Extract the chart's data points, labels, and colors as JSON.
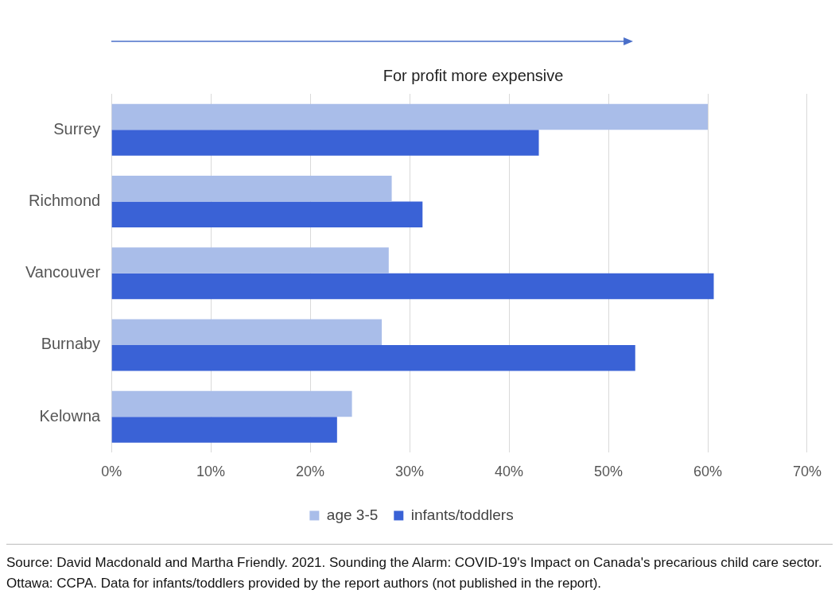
{
  "chart_data": {
    "type": "bar",
    "orientation": "horizontal",
    "categories": [
      "Surrey",
      "Richmond",
      "Vancouver",
      "Burnaby",
      "Kelowna"
    ],
    "series": [
      {
        "name": "age 3-5",
        "color": "#a9bde9",
        "values": [
          60,
          28.2,
          27.9,
          27.2,
          24.2
        ]
      },
      {
        "name": "infants/toddlers",
        "color": "#3a62d6",
        "values": [
          43,
          31.3,
          60.6,
          52.7,
          22.7
        ]
      }
    ],
    "xlim": [
      0,
      70
    ],
    "xticks": [
      {
        "value": 0,
        "label": "0%"
      },
      {
        "value": 10,
        "label": "10%"
      },
      {
        "value": 20,
        "label": "20%"
      },
      {
        "value": 30,
        "label": "30%"
      },
      {
        "value": 40,
        "label": "40%"
      },
      {
        "value": 50,
        "label": "50%"
      },
      {
        "value": 60,
        "label": "60%"
      },
      {
        "value": 70,
        "label": "70%"
      }
    ],
    "grid": "x",
    "legend": "bottom",
    "annotations": [
      "For profit more expensive",
      "Source: David Macdonald and Martha Friendly. 2021. Sounding the Alarm: COVID-19's Impact on Canada's precarious child care sector. Ottawa: CCPA. Data for infants/toddlers provided by the report authors (not published in the report)."
    ]
  }
}
